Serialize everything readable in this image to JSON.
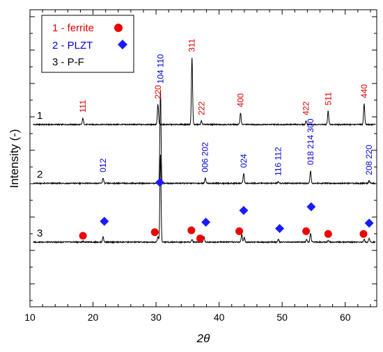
{
  "chart_data": {
    "type": "line",
    "xlabel": "2θ",
    "ylabel": "Intensity (-)",
    "xlim": [
      10,
      65
    ],
    "x_ticks": [
      "10",
      "20",
      "30",
      "40",
      "50",
      "60"
    ],
    "legend": [
      {
        "text": "1 - ferrite",
        "color": "#e00000",
        "marker": "circle"
      },
      {
        "text": "2 - PLZT",
        "color": "#0000e0",
        "marker": "diamond"
      },
      {
        "text": "3 - P-F",
        "color": "#000000",
        "marker": "none"
      }
    ],
    "series": [
      {
        "name": "1",
        "baseline": 1.0,
        "peaks": [
          {
            "x": 18.4,
            "h": 0.07,
            "label": "111"
          },
          {
            "x": 30.3,
            "h": 0.22,
            "label": "220"
          },
          {
            "x": 35.7,
            "h": 0.74,
            "label": "311"
          },
          {
            "x": 37.2,
            "h": 0.04,
            "label": "222"
          },
          {
            "x": 43.4,
            "h": 0.13,
            "label": "400"
          },
          {
            "x": 53.8,
            "h": 0.04,
            "label": "422"
          },
          {
            "x": 57.3,
            "h": 0.15,
            "label": "511"
          },
          {
            "x": 63.0,
            "h": 0.23,
            "label": "440"
          }
        ]
      },
      {
        "name": "2",
        "baseline": 0.35,
        "peaks": [
          {
            "x": 21.6,
            "h": 0.06,
            "label": "012"
          },
          {
            "x": 30.7,
            "h": 1.04,
            "label": "104 110"
          },
          {
            "x": 37.8,
            "h": 0.06,
            "label": "006 202"
          },
          {
            "x": 43.9,
            "h": 0.11,
            "label": "024"
          },
          {
            "x": 49.4,
            "h": 0.02,
            "label": "116 112"
          },
          {
            "x": 54.5,
            "h": 0.14,
            "label": "018 214 300"
          },
          {
            "x": 63.8,
            "h": 0.03,
            "label": "208 220"
          }
        ]
      },
      {
        "name": "3",
        "baseline": -0.3,
        "peaks": [
          {
            "x": 18.4,
            "h": 0.01
          },
          {
            "x": 21.6,
            "h": 0.06
          },
          {
            "x": 30.3,
            "h": 0.06
          },
          {
            "x": 30.7,
            "h": 0.97
          },
          {
            "x": 35.7,
            "h": 0.03
          },
          {
            "x": 37.6,
            "h": 0.06
          },
          {
            "x": 43.6,
            "h": 0.09
          },
          {
            "x": 44.0,
            "h": 0.05
          },
          {
            "x": 49.4,
            "h": 0.03
          },
          {
            "x": 53.9,
            "h": 0.03
          },
          {
            "x": 54.5,
            "h": 0.1
          },
          {
            "x": 57.3,
            "h": 0.02
          },
          {
            "x": 63.0,
            "h": 0.03
          },
          {
            "x": 63.8,
            "h": 0.04
          }
        ]
      }
    ],
    "markers": {
      "ferrite": [
        {
          "x": 18.4,
          "y": -0.23
        },
        {
          "x": 29.8,
          "y": -0.19
        },
        {
          "x": 35.6,
          "y": -0.17
        },
        {
          "x": 37.0,
          "y": -0.26
        },
        {
          "x": 43.2,
          "y": -0.18
        },
        {
          "x": 53.8,
          "y": -0.18
        },
        {
          "x": 57.3,
          "y": -0.21
        },
        {
          "x": 62.9,
          "y": -0.21
        }
      ],
      "plzt": [
        {
          "x": 21.8,
          "y": -0.07
        },
        {
          "x": 30.6,
          "y": 0.36
        },
        {
          "x": 37.9,
          "y": -0.08
        },
        {
          "x": 43.9,
          "y": 0.05
        },
        {
          "x": 49.6,
          "y": -0.15
        },
        {
          "x": 54.6,
          "y": 0.09
        },
        {
          "x": 63.8,
          "y": -0.09
        }
      ]
    }
  }
}
